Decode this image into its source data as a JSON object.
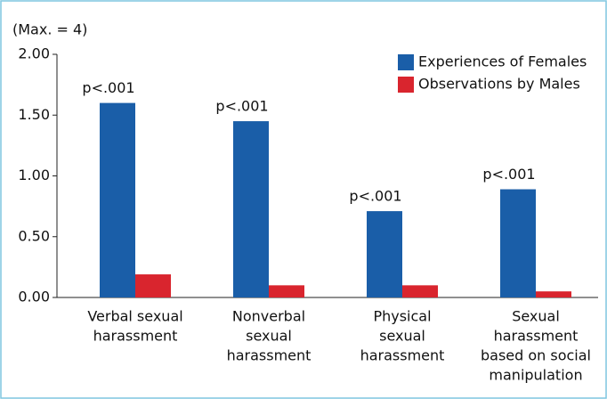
{
  "chart_data": {
    "type": "bar",
    "y_axis_label": "(Max. = 4)",
    "categories": [
      [
        "Verbal sexual",
        "harassment"
      ],
      [
        "Nonverbal",
        "sexual",
        "harassment"
      ],
      [
        "Physical",
        "sexual",
        "harassment"
      ],
      [
        "Sexual",
        "harassment",
        "based on social",
        "manipulation"
      ]
    ],
    "series": [
      {
        "name": "Experiences of Females",
        "color": "#1a5ea8",
        "values": [
          1.6,
          1.45,
          0.71,
          0.89
        ]
      },
      {
        "name": "Observations by Males",
        "color": "#d9252e",
        "values": [
          0.19,
          0.1,
          0.1,
          0.05
        ]
      }
    ],
    "annotations": [
      "p<.001",
      "p<.001",
      "p<.001",
      "p<.001"
    ],
    "ylim": [
      0,
      2
    ],
    "yticks": [
      {
        "value": 0,
        "label": "0.00"
      },
      {
        "value": 0.5,
        "label": "0.50"
      },
      {
        "value": 1,
        "label": "1.00"
      },
      {
        "value": 1.5,
        "label": "1.50"
      },
      {
        "value": 2,
        "label": "2.00"
      }
    ],
    "legend": "top-right",
    "grid": false
  }
}
